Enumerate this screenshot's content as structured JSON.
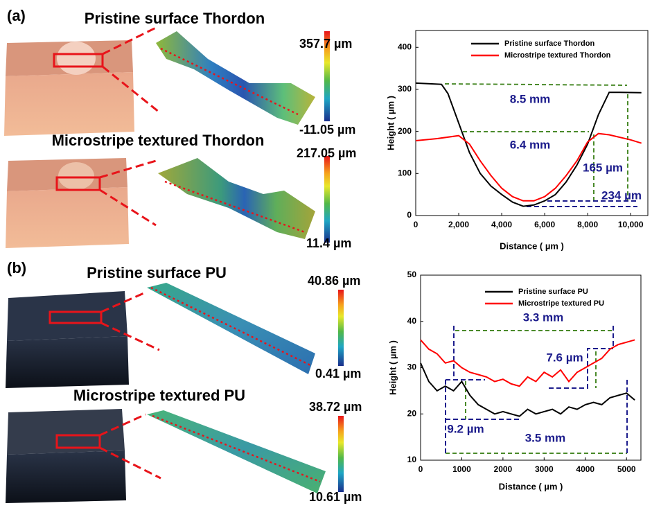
{
  "figure": {
    "panels": [
      {
        "label": "(a)",
        "samples": [
          {
            "title": "Pristine surface Thordon",
            "colorbar_max": "357.7 µm",
            "colorbar_min": "-11.05 µm"
          },
          {
            "title": "Microstripe textured Thordon",
            "colorbar_max": "217.05 µm",
            "colorbar_min": "11.4 µm"
          }
        ]
      },
      {
        "label": "(b)",
        "samples": [
          {
            "title": "Pristine surface PU",
            "colorbar_max": "40.86 µm",
            "colorbar_min": "0.41 µm"
          },
          {
            "title": "Microstripe textured PU",
            "colorbar_max": "38.72 µm",
            "colorbar_min": "10.61 µm"
          }
        ]
      }
    ]
  },
  "chart_data": [
    {
      "type": "line",
      "xlabel": "Distance ( µm )",
      "ylabel": "Height ( µm )",
      "xlim": [
        0,
        10800
      ],
      "ylim": [
        0,
        440
      ],
      "xticks": [
        0,
        {
          "value": 2000,
          "label": "2,000"
        },
        {
          "value": 4000,
          "label": "4,000"
        },
        {
          "value": 6000,
          "label": "6,000"
        },
        {
          "value": 8000,
          "label": "8,000"
        },
        {
          "value": 10000,
          "label": "10,000"
        }
      ],
      "yticks": [
        0,
        100,
        200,
        300,
        400
      ],
      "legend": "upper right",
      "series": [
        {
          "name": "Pristine surface Thordon",
          "color": "#000000",
          "x": [
            0,
            1200,
            1500,
            2000,
            2500,
            3000,
            3500,
            4000,
            4500,
            5000,
            5500,
            6000,
            6500,
            7000,
            7500,
            8000,
            8500,
            9000,
            9500,
            10500
          ],
          "values": [
            315,
            312,
            290,
            220,
            150,
            100,
            70,
            50,
            32,
            22,
            25,
            35,
            50,
            80,
            120,
            170,
            240,
            293,
            293,
            292
          ]
        },
        {
          "name": "Microstripe textured Thordon",
          "color": "#ff0000",
          "x": [
            0,
            1000,
            2000,
            2500,
            3000,
            3500,
            4000,
            4500,
            5000,
            5500,
            6000,
            6500,
            7000,
            7500,
            8000,
            8500,
            9000,
            10000,
            10500
          ],
          "values": [
            178,
            183,
            190,
            170,
            130,
            95,
            65,
            45,
            35,
            35,
            45,
            65,
            95,
            130,
            175,
            195,
            192,
            180,
            172
          ]
        }
      ],
      "annotations": [
        "8.5 mm",
        "6.4 mm",
        "165 µm",
        "234 µm"
      ]
    },
    {
      "type": "line",
      "xlabel": "Distance ( µm )",
      "ylabel": "Height ( µm )",
      "xlim": [
        0,
        5350
      ],
      "ylim": [
        10,
        50
      ],
      "xticks": [
        0,
        1000,
        2000,
        3000,
        4000,
        5000
      ],
      "yticks": [
        10,
        20,
        30,
        40,
        50
      ],
      "legend": "upper right",
      "series": [
        {
          "name": "Pristine surface PU",
          "color": "#000000",
          "x": [
            0,
            200,
            400,
            600,
            800,
            1000,
            1200,
            1400,
            1600,
            1800,
            2000,
            2200,
            2400,
            2600,
            2800,
            3000,
            3200,
            3400,
            3600,
            3800,
            4000,
            4200,
            4400,
            4600,
            4800,
            5000,
            5200
          ],
          "values": [
            31,
            27,
            25,
            26,
            25,
            27,
            24,
            22,
            21,
            20,
            20.5,
            20,
            19.5,
            21,
            20,
            20.5,
            21,
            20,
            21.5,
            21,
            22,
            22.5,
            22,
            23.5,
            24,
            24.5,
            23
          ]
        },
        {
          "name": "Microstripe textured PU",
          "color": "#ff0000",
          "x": [
            0,
            200,
            400,
            600,
            800,
            1000,
            1200,
            1400,
            1600,
            1800,
            2000,
            2200,
            2400,
            2600,
            2800,
            3000,
            3200,
            3400,
            3600,
            3800,
            4000,
            4200,
            4400,
            4600,
            4800,
            5000,
            5200
          ],
          "values": [
            36,
            34,
            33,
            31,
            31.5,
            30,
            29,
            28.5,
            28,
            27,
            27.5,
            26.5,
            26,
            28,
            27,
            29,
            28,
            29.5,
            27,
            29,
            30,
            31,
            32,
            34,
            35,
            35.5,
            36
          ]
        }
      ],
      "annotations": [
        "3.3 mm",
        "7.6 µm",
        "9.2 µm",
        "3.5 mm"
      ]
    }
  ]
}
